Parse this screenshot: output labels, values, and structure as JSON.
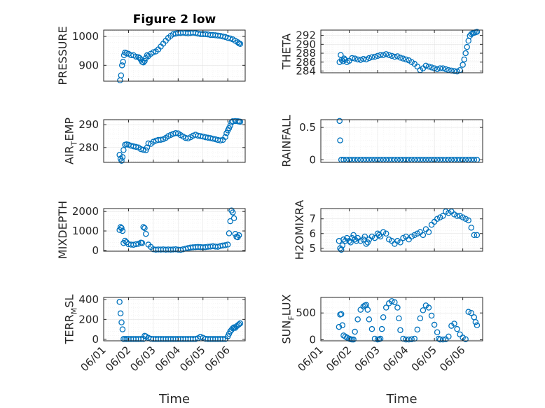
{
  "figure": {
    "title": "Figure 2 low",
    "xlabel": "Time",
    "marker_color": "#0072bd"
  },
  "chart_data": [
    {
      "type": "scatter",
      "ylabel": "PRESSURE",
      "title": "Figure 2 low",
      "xlim": [
        0,
        5.7
      ],
      "ylim": [
        845,
        1022
      ],
      "yticks": [
        900,
        1000
      ],
      "ytick_labels": [
        "900",
        "1000"
      ],
      "xticks": [
        0,
        1,
        2,
        3,
        4,
        5
      ],
      "xtick_labels": [
        "06/01",
        "06/02",
        "06/03",
        "06/04",
        "06/05",
        "06/06"
      ],
      "show_xtick_labels": false,
      "grid": true,
      "x": [
        0.66,
        0.7,
        0.74,
        0.78,
        0.82,
        0.86,
        0.92,
        1.0,
        1.1,
        1.2,
        1.3,
        1.4,
        1.45,
        1.5,
        1.55,
        1.6,
        1.65,
        1.7,
        1.75,
        1.8,
        1.9,
        2.0,
        2.1,
        2.2,
        2.3,
        2.4,
        2.5,
        2.6,
        2.7,
        2.8,
        2.9,
        3.0,
        3.1,
        3.2,
        3.3,
        3.4,
        3.5,
        3.6,
        3.7,
        3.8,
        3.9,
        4.0,
        4.1,
        4.2,
        4.3,
        4.4,
        4.5,
        4.6,
        4.7,
        4.8,
        4.9,
        5.0,
        5.1,
        5.2,
        5.3,
        5.4,
        5.45,
        5.5
      ],
      "y": [
        848,
        865,
        900,
        912,
        935,
        944,
        942,
        940,
        935,
        935,
        930,
        928,
        925,
        920,
        912,
        910,
        915,
        925,
        935,
        932,
        940,
        945,
        948,
        955,
        965,
        975,
        985,
        995,
        1002,
        1008,
        1010,
        1012,
        1012,
        1013,
        1012,
        1011,
        1012,
        1013,
        1012,
        1010,
        1008,
        1008,
        1008,
        1007,
        1005,
        1005,
        1004,
        1003,
        1002,
        1000,
        998,
        995,
        993,
        990,
        985,
        980,
        976,
        974
      ]
    },
    {
      "type": "scatter",
      "ylabel": "THETA",
      "xlim": [
        0,
        5.7
      ],
      "ylim": [
        283.6,
        293.2
      ],
      "yticks": [
        284,
        286,
        288,
        290,
        292
      ],
      "ytick_labels": [
        "284",
        "286",
        "288",
        "290",
        "292"
      ],
      "xticks": [
        0,
        1,
        2,
        3,
        4,
        5
      ],
      "xtick_labels": [
        "06/01",
        "06/02",
        "06/03",
        "06/04",
        "06/05",
        "06/06"
      ],
      "show_xtick_labels": false,
      "grid": true,
      "x": [
        0.66,
        0.7,
        0.74,
        0.78,
        0.82,
        0.86,
        0.92,
        1.0,
        1.1,
        1.2,
        1.3,
        1.4,
        1.5,
        1.6,
        1.7,
        1.8,
        1.9,
        2.0,
        2.1,
        2.2,
        2.3,
        2.4,
        2.5,
        2.6,
        2.7,
        2.8,
        2.9,
        3.0,
        3.1,
        3.2,
        3.3,
        3.4,
        3.5,
        3.6,
        3.7,
        3.8,
        3.9,
        4.0,
        4.1,
        4.2,
        4.3,
        4.4,
        4.5,
        4.6,
        4.7,
        4.8,
        4.9,
        5.0,
        5.05,
        5.1,
        5.15,
        5.2,
        5.25,
        5.3,
        5.35,
        5.4,
        5.45,
        5.5
      ],
      "y": [
        286.0,
        287.6,
        286.5,
        286.2,
        286.8,
        286.5,
        286.0,
        286.3,
        286.9,
        286.8,
        286.6,
        286.5,
        286.7,
        286.6,
        286.9,
        287.1,
        287.2,
        287.4,
        287.6,
        287.6,
        287.8,
        287.6,
        287.4,
        287.2,
        287.3,
        287.0,
        286.8,
        286.6,
        286.4,
        286.0,
        285.6,
        285.0,
        284.2,
        284.6,
        285.2,
        285.0,
        284.8,
        284.6,
        284.4,
        284.6,
        284.6,
        284.4,
        284.2,
        284.1,
        284.0,
        283.9,
        284.2,
        285.4,
        286.6,
        288.0,
        289.4,
        290.8,
        291.9,
        292.3,
        292.5,
        292.6,
        292.7,
        292.8
      ]
    },
    {
      "type": "scatter",
      "ylabel": "AIR_TEMP",
      "ylabel_main_1": "AIR",
      "ylabel_sub": "T",
      "ylabel_main_2": "EMP",
      "xlim": [
        0,
        5.7
      ],
      "ylim": [
        273.5,
        292.2
      ],
      "yticks": [
        280,
        290
      ],
      "ytick_labels": [
        "280",
        "290"
      ],
      "xticks": [
        0,
        1,
        2,
        3,
        4,
        5
      ],
      "xtick_labels": [
        "06/01",
        "06/02",
        "06/03",
        "06/04",
        "06/05",
        "06/06"
      ],
      "show_xtick_labels": false,
      "grid": true,
      "x": [
        0.64,
        0.68,
        0.72,
        0.76,
        0.8,
        0.86,
        0.92,
        1.0,
        1.1,
        1.2,
        1.3,
        1.4,
        1.5,
        1.6,
        1.7,
        1.75,
        1.8,
        1.9,
        2.0,
        2.1,
        2.2,
        2.3,
        2.4,
        2.5,
        2.6,
        2.7,
        2.8,
        2.9,
        3.0,
        3.1,
        3.2,
        3.3,
        3.4,
        3.5,
        3.6,
        3.7,
        3.8,
        3.9,
        4.0,
        4.1,
        4.2,
        4.3,
        4.4,
        4.5,
        4.6,
        4.7,
        4.8,
        4.9,
        4.95,
        5.0,
        5.05,
        5.1,
        5.15,
        5.2,
        5.3,
        5.4,
        5.45,
        5.5
      ],
      "y": [
        276.8,
        275.1,
        274.2,
        275.8,
        278.9,
        281.2,
        281.4,
        281.2,
        280.8,
        280.5,
        280.3,
        280.0,
        279.3,
        279.0,
        278.8,
        280.0,
        281.8,
        281.6,
        282.5,
        283.0,
        283.3,
        283.4,
        283.6,
        284.2,
        285.0,
        285.5,
        286.0,
        286.3,
        286.2,
        285.4,
        284.8,
        284.2,
        284.0,
        284.5,
        285.2,
        285.6,
        285.2,
        285.0,
        284.8,
        284.5,
        284.3,
        284.1,
        283.9,
        283.6,
        283.3,
        283.1,
        283.3,
        284.6,
        286.3,
        287.5,
        288.5,
        289.6,
        291.0,
        291.5,
        291.6,
        291.5,
        291.4,
        291.3
      ]
    },
    {
      "type": "scatter",
      "ylabel": "RAINFALL",
      "xlim": [
        0,
        5.7
      ],
      "ylim": [
        -0.04,
        0.62
      ],
      "yticks": [
        0,
        0.5
      ],
      "ytick_labels": [
        "0",
        "0.5"
      ],
      "xticks": [
        0,
        1,
        2,
        3,
        4,
        5
      ],
      "xtick_labels": [
        "06/01",
        "06/02",
        "06/03",
        "06/04",
        "06/05",
        "06/06"
      ],
      "show_xtick_labels": false,
      "grid": true,
      "x": [
        0.66,
        0.68,
        0.72,
        0.8,
        0.9,
        1.0,
        1.1,
        1.2,
        1.3,
        1.4,
        1.5,
        1.6,
        1.7,
        1.8,
        1.9,
        2.0,
        2.1,
        2.2,
        2.3,
        2.4,
        2.5,
        2.6,
        2.7,
        2.8,
        2.9,
        3.0,
        3.1,
        3.2,
        3.3,
        3.4,
        3.5,
        3.6,
        3.7,
        3.8,
        3.9,
        4.0,
        4.1,
        4.2,
        4.3,
        4.4,
        4.5,
        4.6,
        4.7,
        4.8,
        4.9,
        5.0,
        5.1,
        5.2,
        5.3,
        5.4,
        5.5
      ],
      "y": [
        0.6,
        0.3,
        0,
        0,
        0,
        0,
        0,
        0,
        0,
        0,
        0,
        0,
        0,
        0,
        0,
        0,
        0,
        0,
        0,
        0,
        0,
        0,
        0,
        0,
        0,
        0,
        0,
        0,
        0,
        0,
        0,
        0,
        0,
        0,
        0,
        0,
        0,
        0,
        0,
        0,
        0,
        0,
        0,
        0,
        0,
        0,
        0,
        0,
        0,
        0,
        0
      ]
    },
    {
      "type": "scatter",
      "ylabel": "MIXDEPTH",
      "xlim": [
        0,
        5.7
      ],
      "ylim": [
        -40,
        2150
      ],
      "yticks": [
        0,
        1000,
        2000
      ],
      "ytick_labels": [
        "0",
        "1000",
        "2000"
      ],
      "xticks": [
        0,
        1,
        2,
        3,
        4,
        5
      ],
      "xtick_labels": [
        "06/01",
        "06/02",
        "06/03",
        "06/04",
        "06/05",
        "06/06"
      ],
      "show_xtick_labels": false,
      "grid": true,
      "x": [
        0.64,
        0.68,
        0.72,
        0.76,
        0.8,
        0.86,
        0.92,
        1.0,
        1.1,
        1.2,
        1.3,
        1.4,
        1.5,
        1.55,
        1.6,
        1.65,
        1.7,
        1.8,
        1.9,
        2.0,
        2.1,
        2.2,
        2.3,
        2.4,
        2.5,
        2.6,
        2.7,
        2.8,
        2.9,
        3.0,
        3.1,
        3.2,
        3.3,
        3.4,
        3.5,
        3.6,
        3.7,
        3.8,
        3.9,
        4.0,
        4.1,
        4.2,
        4.3,
        4.4,
        4.5,
        4.6,
        4.7,
        4.8,
        4.9,
        5.0,
        5.05,
        5.1,
        5.15,
        5.2,
        5.25,
        5.3,
        5.35,
        5.4,
        5.45
      ],
      "y": [
        1050,
        1200,
        1150,
        1000,
        380,
        500,
        420,
        320,
        300,
        290,
        320,
        340,
        400,
        380,
        1200,
        1150,
        850,
        300,
        180,
        60,
        40,
        50,
        45,
        55,
        40,
        50,
        40,
        50,
        60,
        40,
        30,
        60,
        90,
        120,
        150,
        160,
        170,
        180,
        170,
        160,
        170,
        190,
        200,
        220,
        200,
        190,
        230,
        250,
        270,
        300,
        880,
        1500,
        2050,
        1950,
        1650,
        850,
        700,
        680,
        780
      ]
    },
    {
      "type": "scatter",
      "ylabel": "H2OMIXRA",
      "xlim": [
        0,
        5.7
      ],
      "ylim": [
        4.8,
        7.7
      ],
      "yticks": [
        5,
        6,
        7
      ],
      "ytick_labels": [
        "5",
        "6",
        "7"
      ],
      "xticks": [
        0,
        1,
        2,
        3,
        4,
        5
      ],
      "xtick_labels": [
        "06/01",
        "06/02",
        "06/03",
        "06/04",
        "06/05",
        "06/06"
      ],
      "show_xtick_labels": false,
      "grid": true,
      "x": [
        0.64,
        0.68,
        0.72,
        0.76,
        0.8,
        0.86,
        0.92,
        1.0,
        1.05,
        1.1,
        1.15,
        1.2,
        1.25,
        1.3,
        1.4,
        1.5,
        1.55,
        1.6,
        1.65,
        1.7,
        1.8,
        1.9,
        2.0,
        2.05,
        2.1,
        2.2,
        2.3,
        2.4,
        2.5,
        2.6,
        2.7,
        2.8,
        2.9,
        3.0,
        3.1,
        3.2,
        3.3,
        3.4,
        3.5,
        3.6,
        3.7,
        3.8,
        3.9,
        4.0,
        4.1,
        4.2,
        4.3,
        4.4,
        4.5,
        4.6,
        4.7,
        4.8,
        4.9,
        5.0,
        5.1,
        5.2,
        5.3,
        5.4,
        5.5
      ],
      "y": [
        5.5,
        5.0,
        4.9,
        5.2,
        5.6,
        5.5,
        5.7,
        5.5,
        5.4,
        5.7,
        5.9,
        5.6,
        5.5,
        5.7,
        5.5,
        5.6,
        5.8,
        5.3,
        5.4,
        5.6,
        5.8,
        5.7,
        6.0,
        5.9,
        5.8,
        6.1,
        6.0,
        5.6,
        5.5,
        5.3,
        5.5,
        5.4,
        5.7,
        5.8,
        5.6,
        5.8,
        5.9,
        6.0,
        6.1,
        5.9,
        6.3,
        6.1,
        6.6,
        6.8,
        7.0,
        7.1,
        7.2,
        7.5,
        7.4,
        7.5,
        7.3,
        7.2,
        7.2,
        7.1,
        7.0,
        6.9,
        6.4,
        5.9,
        5.9
      ]
    },
    {
      "type": "scatter",
      "ylabel": "TERR_MSL",
      "ylabel_main_1": "TERR",
      "ylabel_sub": "M",
      "ylabel_main_2": "SL",
      "xlabel": "Time",
      "xlim": [
        0,
        5.7
      ],
      "ylim": [
        -15,
        420
      ],
      "yticks": [
        0,
        200,
        400
      ],
      "ytick_labels": [
        "0",
        "200",
        "400"
      ],
      "xticks": [
        0,
        1,
        2,
        3,
        4,
        5
      ],
      "xtick_labels": [
        "06/01",
        "06/02",
        "06/03",
        "06/04",
        "06/05",
        "06/06"
      ],
      "show_xtick_labels": true,
      "grid": true,
      "x": [
        0.64,
        0.68,
        0.72,
        0.76,
        0.8,
        0.86,
        0.92,
        1.0,
        1.1,
        1.2,
        1.3,
        1.4,
        1.5,
        1.6,
        1.65,
        1.7,
        1.8,
        1.9,
        2.0,
        2.1,
        2.2,
        2.3,
        2.4,
        2.5,
        2.6,
        2.7,
        2.8,
        2.9,
        3.0,
        3.1,
        3.2,
        3.3,
        3.4,
        3.5,
        3.6,
        3.7,
        3.8,
        3.9,
        4.0,
        4.1,
        4.2,
        4.3,
        4.4,
        4.5,
        4.6,
        4.7,
        4.8,
        4.9,
        5.0,
        5.05,
        5.1,
        5.15,
        5.2,
        5.25,
        5.3,
        5.35,
        5.4,
        5.45,
        5.5
      ],
      "y": [
        375,
        260,
        170,
        100,
        3,
        3,
        3,
        3,
        3,
        3,
        3,
        3,
        3,
        3,
        35,
        30,
        15,
        5,
        3,
        3,
        3,
        3,
        3,
        3,
        3,
        3,
        3,
        3,
        3,
        3,
        3,
        3,
        3,
        3,
        3,
        3,
        10,
        25,
        15,
        5,
        3,
        3,
        3,
        3,
        3,
        3,
        3,
        3,
        30,
        55,
        80,
        95,
        110,
        120,
        115,
        130,
        140,
        150,
        160
      ]
    },
    {
      "type": "scatter",
      "ylabel": "SUN_FLUX",
      "ylabel_main_1": "SUN",
      "ylabel_sub": "F",
      "ylabel_main_2": "LUX",
      "xlabel": "Time",
      "xlim": [
        0,
        5.7
      ],
      "ylim": [
        -20,
        790
      ],
      "yticks": [
        0,
        500
      ],
      "ytick_labels": [
        "0",
        "500"
      ],
      "xticks": [
        0,
        1,
        2,
        3,
        4,
        5
      ],
      "xtick_labels": [
        "06/01",
        "06/02",
        "06/03",
        "06/04",
        "06/05",
        "06/06"
      ],
      "show_xtick_labels": true,
      "grid": true,
      "x": [
        0.64,
        0.68,
        0.72,
        0.76,
        0.8,
        0.86,
        0.92,
        1.0,
        1.05,
        1.1,
        1.15,
        1.2,
        1.3,
        1.4,
        1.5,
        1.55,
        1.6,
        1.65,
        1.7,
        1.8,
        1.9,
        2.0,
        2.05,
        2.1,
        2.15,
        2.2,
        2.3,
        2.4,
        2.5,
        2.6,
        2.7,
        2.75,
        2.8,
        2.9,
        3.0,
        3.1,
        3.2,
        3.3,
        3.4,
        3.5,
        3.6,
        3.7,
        3.8,
        3.9,
        4.0,
        4.1,
        4.15,
        4.2,
        4.3,
        4.4,
        4.5,
        4.6,
        4.7,
        4.8,
        4.9,
        5.0,
        5.1,
        5.2,
        5.3,
        5.4,
        5.45,
        5.5
      ],
      "y": [
        240,
        470,
        480,
        270,
        80,
        60,
        40,
        20,
        10,
        5,
        5,
        150,
        380,
        560,
        620,
        640,
        650,
        560,
        380,
        200,
        20,
        5,
        10,
        20,
        200,
        420,
        600,
        680,
        720,
        700,
        600,
        400,
        180,
        20,
        5,
        5,
        10,
        20,
        190,
        400,
        550,
        640,
        600,
        450,
        280,
        140,
        20,
        5,
        5,
        10,
        60,
        260,
        300,
        200,
        100,
        40,
        10,
        520,
        500,
        420,
        330,
        270
      ]
    }
  ]
}
